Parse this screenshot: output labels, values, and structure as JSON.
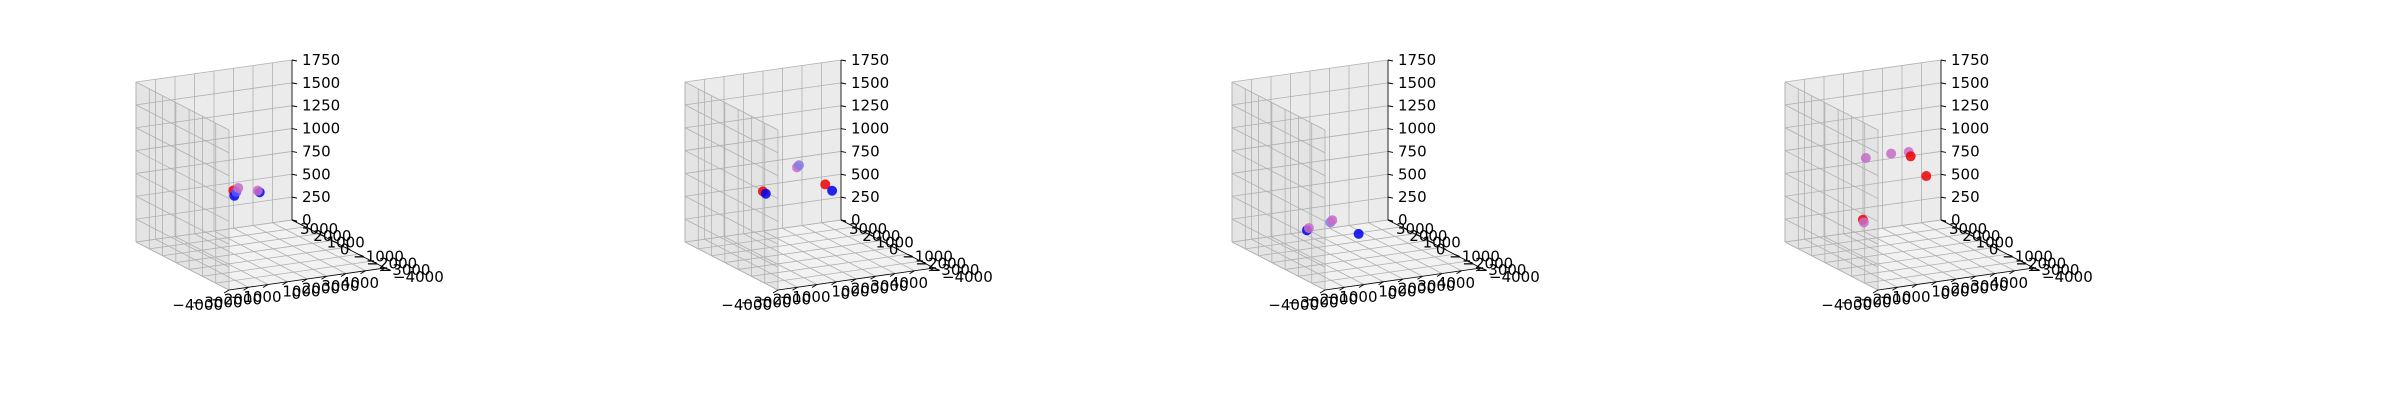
{
  "figure": {
    "background": "#ffffff",
    "pane_colors": {
      "floor": "#f2f2f2",
      "back": "#ebebeb",
      "left": "#e4e4e4"
    },
    "grid_color": "#b0b0b0"
  },
  "chart_data": [
    {
      "type": "scatter3d",
      "xlim": [
        -4000,
        4000
      ],
      "ylim": [
        -4000,
        3000
      ],
      "zlim": [
        0,
        1750
      ],
      "xticks": [
        "−4000",
        "−3000",
        "−2000",
        "−1000",
        "0",
        "1000",
        "2000",
        "3000",
        "4000"
      ],
      "yticks": [
        "−4000",
        "−3000",
        "−2000",
        "−1000",
        "0",
        "1000",
        "2000",
        "3000"
      ],
      "zticks": [
        "0",
        "250",
        "500",
        "750",
        "1000",
        "1250",
        "1500",
        "1750"
      ],
      "grid": true,
      "points": [
        {
          "x": -1050,
          "y": 0,
          "z": 700,
          "color": "#ee0000"
        },
        {
          "x": -1000,
          "y": 0,
          "z": 640,
          "color": "#0000ee"
        },
        {
          "x": -900,
          "y": 0,
          "z": 680,
          "color": "#5a5aff"
        },
        {
          "x": -800,
          "y": 0,
          "z": 720,
          "color": "#c86cc8"
        },
        {
          "x": 300,
          "y": 0,
          "z": 640,
          "color": "#0000ee"
        },
        {
          "x": 200,
          "y": 0,
          "z": 660,
          "color": "#c86cc8"
        }
      ]
    },
    {
      "type": "scatter3d",
      "xlim": [
        -4000,
        4000
      ],
      "ylim": [
        -4000,
        3000
      ],
      "zlim": [
        0,
        1750
      ],
      "xticks": [
        "−4000",
        "−3000",
        "−2000",
        "−1000",
        "0",
        "1000",
        "2000",
        "3000",
        "4000"
      ],
      "yticks": [
        "−4000",
        "−3000",
        "−2000",
        "−1000",
        "0",
        "1000",
        "2000",
        "3000"
      ],
      "zticks": [
        "0",
        "250",
        "500",
        "750",
        "1000",
        "1250",
        "1500",
        "1750"
      ],
      "grid": true,
      "points": [
        {
          "x": -2050,
          "y": 0,
          "z": 720,
          "color": "#ee0000"
        },
        {
          "x": -1900,
          "y": 0,
          "z": 690,
          "color": "#0000ee"
        },
        {
          "x": -300,
          "y": 0,
          "z": 930,
          "color": "#c86cc8"
        },
        {
          "x": -200,
          "y": 0,
          "z": 950,
          "color": "#8a7ae0"
        },
        {
          "x": 1150,
          "y": 0,
          "z": 700,
          "color": "#ee0000"
        },
        {
          "x": 1500,
          "y": 0,
          "z": 620,
          "color": "#0000ee"
        }
      ]
    },
    {
      "type": "scatter3d",
      "xlim": [
        -4000,
        4000
      ],
      "ylim": [
        -4000,
        3000
      ],
      "zlim": [
        0,
        1750
      ],
      "xticks": [
        "−4000",
        "−3000",
        "−2000",
        "−1000",
        "0",
        "1000",
        "2000",
        "3000",
        "4000"
      ],
      "yticks": [
        "−4000",
        "−3000",
        "−2000",
        "−1000",
        "0",
        "1000",
        "2000",
        "3000"
      ],
      "zticks": [
        "0",
        "250",
        "500",
        "750",
        "1000",
        "1250",
        "1500",
        "1750"
      ],
      "grid": true,
      "points": [
        {
          "x": -2200,
          "y": 0,
          "z": 300,
          "color": "#0000ee"
        },
        {
          "x": -2100,
          "y": 0,
          "z": 320,
          "color": "#c86cc8"
        },
        {
          "x": -1000,
          "y": 0,
          "z": 350,
          "color": "#8a7ae0"
        },
        {
          "x": -900,
          "y": 0,
          "z": 370,
          "color": "#c86cc8"
        },
        {
          "x": 450,
          "y": 0,
          "z": 180,
          "color": "#0000ee"
        }
      ]
    },
    {
      "type": "scatter3d",
      "xlim": [
        -4000,
        4000
      ],
      "ylim": [
        -4000,
        3000
      ],
      "zlim": [
        0,
        1750
      ],
      "xticks": [
        "−4000",
        "−3000",
        "−2000",
        "−1000",
        "0",
        "1000",
        "2000",
        "3000",
        "4000"
      ],
      "yticks": [
        "−4000",
        "−3000",
        "−2000",
        "−1000",
        "0",
        "1000",
        "2000",
        "3000"
      ],
      "zticks": [
        "0",
        "250",
        "500",
        "750",
        "1000",
        "1250",
        "1500",
        "1750"
      ],
      "grid": true,
      "points": [
        {
          "x": -2050,
          "y": 0,
          "z": 410,
          "color": "#ee0000"
        },
        {
          "x": -2000,
          "y": 0,
          "z": 380,
          "color": "#c86cc8"
        },
        {
          "x": -1900,
          "y": 0,
          "z": 1080,
          "color": "#c86cc8"
        },
        {
          "x": -600,
          "y": 0,
          "z": 1090,
          "color": "#c86cc8"
        },
        {
          "x": 300,
          "y": 0,
          "z": 1080,
          "color": "#c86cc8"
        },
        {
          "x": 400,
          "y": 0,
          "z": 1030,
          "color": "#ee0000"
        },
        {
          "x": 1200,
          "y": 0,
          "z": 790,
          "color": "#ee0000"
        }
      ]
    }
  ]
}
